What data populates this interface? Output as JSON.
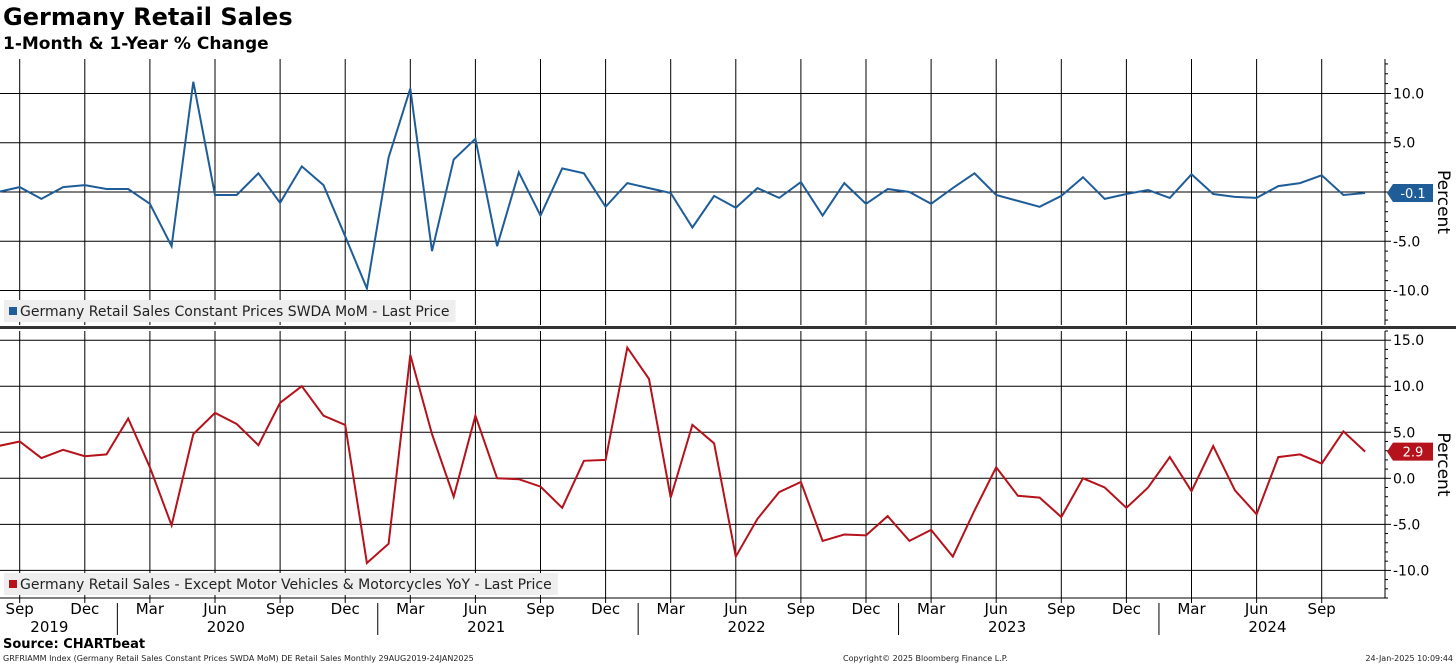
{
  "header": {
    "title": "Germany Retail Sales",
    "subtitle": "1-Month & 1-Year % Change"
  },
  "footer": {
    "source": "Source: CHARTbeat",
    "ticker_info": "GRFRIAMM Index (Germany Retail Sales Constant Prices SWDA MoM) DE Retail Sales  Monthly 29AUG2019-24JAN2025",
    "copyright": "Copyright© 2025 Bloomberg Finance L.P.",
    "timestamp": "24-Jan-2025 10:09:44"
  },
  "colors": {
    "mom": "#1f5d99",
    "yoy": "#b5121b",
    "grid": "#000000",
    "axis": "#000000"
  },
  "chart_data": {
    "type": "line",
    "x": [
      "2019-08",
      "2019-09",
      "2019-10",
      "2019-11",
      "2019-12",
      "2020-01",
      "2020-02",
      "2020-03",
      "2020-04",
      "2020-05",
      "2020-06",
      "2020-07",
      "2020-08",
      "2020-09",
      "2020-10",
      "2020-11",
      "2020-12",
      "2021-01",
      "2021-02",
      "2021-03",
      "2021-04",
      "2021-05",
      "2021-06",
      "2021-07",
      "2021-08",
      "2021-09",
      "2021-10",
      "2021-11",
      "2021-12",
      "2022-01",
      "2022-02",
      "2022-03",
      "2022-04",
      "2022-05",
      "2022-06",
      "2022-07",
      "2022-08",
      "2022-09",
      "2022-10",
      "2022-11",
      "2022-12",
      "2023-01",
      "2023-02",
      "2023-03",
      "2023-04",
      "2023-05",
      "2023-06",
      "2023-07",
      "2023-08",
      "2023-09",
      "2023-10",
      "2023-11",
      "2023-12",
      "2024-01",
      "2024-02",
      "2024-03",
      "2024-04",
      "2024-05",
      "2024-06",
      "2024-07",
      "2024-08",
      "2024-09",
      "2024-10",
      "2024-11"
    ],
    "x_tick_months": [
      "Sep",
      "Dec",
      "Mar",
      "Jun",
      "Sep",
      "Dec",
      "Mar",
      "Jun",
      "Sep",
      "Dec",
      "Mar",
      "Jun",
      "Sep",
      "Dec",
      "Mar",
      "Jun",
      "Sep",
      "Dec",
      "Mar",
      "Jun",
      "Sep"
    ],
    "x_tick_years": [
      "2019",
      "2020",
      "2021",
      "2022",
      "2023",
      "2024"
    ],
    "panels": [
      {
        "name": "mom",
        "legend": "Germany Retail Sales Constant Prices SWDA MoM - Last Price",
        "ylabel": "Percent",
        "ylim": [
          -13.5,
          13.5
        ],
        "yticks": [
          "10.0",
          "5.0",
          "",
          "-5.0",
          "-10.0"
        ],
        "ytick_values": [
          10,
          5,
          0,
          -5,
          -10
        ],
        "last_value": "-0.1",
        "series": [
          {
            "name": "Germany Retail Sales Constant Prices SWDA MoM",
            "values": [
              0.0,
              0.5,
              -0.7,
              0.5,
              0.7,
              0.3,
              0.3,
              -1.2,
              -5.5,
              11.2,
              -0.3,
              -0.3,
              1.9,
              -1.1,
              2.6,
              0.7,
              -4.5,
              -9.8,
              3.5,
              10.5,
              -6.0,
              3.3,
              5.4,
              -5.5,
              2.0,
              -2.4,
              2.4,
              1.9,
              -1.5,
              0.9,
              0.4,
              -0.1,
              -3.6,
              -0.4,
              -1.6,
              0.4,
              -0.6,
              1.0,
              -2.4,
              0.9,
              -1.2,
              0.3,
              0.0,
              -1.2,
              0.4,
              1.9,
              -0.3,
              -0.9,
              -1.5,
              -0.4,
              1.5,
              -0.7,
              -0.2,
              0.2,
              -0.6,
              1.8,
              -0.2,
              -0.5,
              -0.6,
              0.6,
              0.9,
              1.7,
              -0.3,
              -0.1
            ]
          }
        ]
      },
      {
        "name": "yoy",
        "legend": "Germany Retail Sales - Except Motor Vehicles & Motorcycles YoY - Last Price",
        "ylabel": "Percent",
        "ylim": [
          -13.0,
          16.0
        ],
        "yticks": [
          "15.0",
          "10.0",
          "5.0",
          "0.0",
          "-5.0",
          "-10.0"
        ],
        "ytick_values": [
          15,
          10,
          5,
          0,
          -5,
          -10
        ],
        "last_value": "2.9",
        "series": [
          {
            "name": "Germany Retail Sales - Except Motor Vehicles & Motorcycles YoY",
            "values": [
              3.5,
              4.0,
              2.2,
              3.1,
              2.4,
              2.6,
              6.5,
              1.2,
              -5.1,
              4.8,
              7.1,
              5.9,
              3.6,
              8.2,
              10.0,
              6.8,
              5.8,
              -9.2,
              -7.1,
              13.4,
              4.8,
              -2.0,
              6.8,
              0.0,
              -0.1,
              -0.9,
              -3.2,
              1.9,
              2.0,
              14.2,
              10.8,
              -2.1,
              5.8,
              3.8,
              -8.5,
              -4.4,
              -1.5,
              -0.4,
              -6.8,
              -6.1,
              -6.2,
              -4.1,
              -6.8,
              -5.6,
              -8.5,
              -3.5,
              1.2,
              -1.9,
              -2.1,
              -4.2,
              0.0,
              -1.0,
              -3.2,
              -1.0,
              2.3,
              -1.4,
              3.5,
              -1.3,
              -3.9,
              2.3,
              2.6,
              1.6,
              5.1,
              2.9
            ]
          }
        ]
      }
    ]
  }
}
